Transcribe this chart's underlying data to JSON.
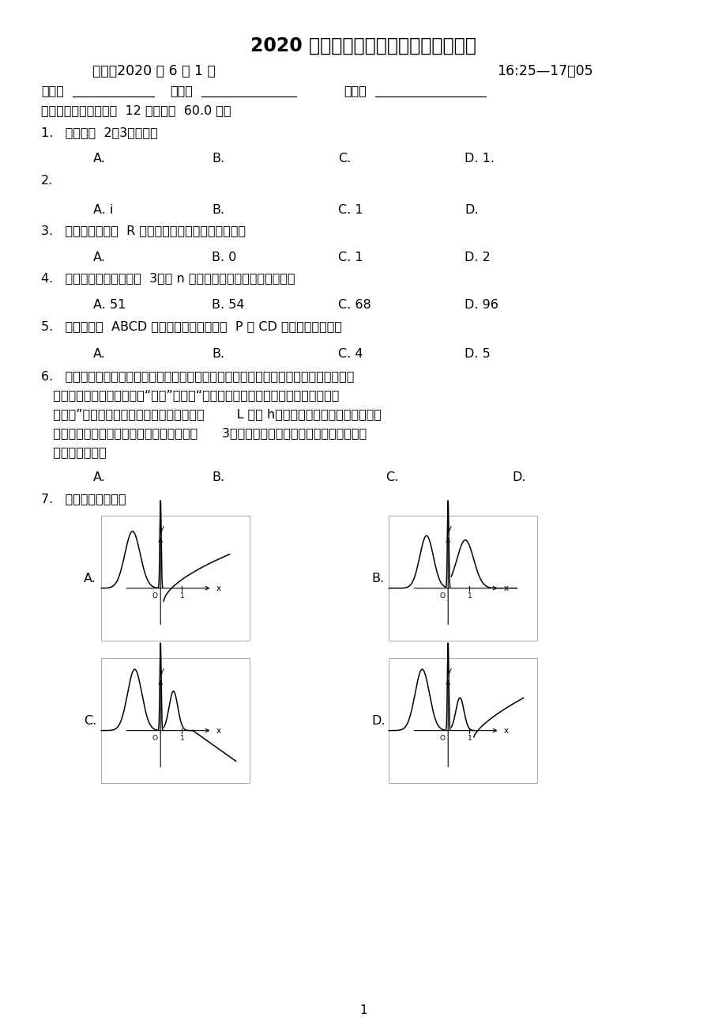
{
  "bg_color": "#ffffff",
  "title": "2020 居高三数学（理）第十次周测试卷",
  "subtitle_left": "时间：2020 年 6 月 1 日",
  "subtitle_right": "16:25—17：05",
  "name_label": "姓名：",
  "class_label": "班级：",
  "score_label": "得分：",
  "section1": "一、选择题（本大题共  12 小题，共  60.0 分）",
  "q1": "1.   已知集合  2，3，，，则",
  "q1_options": [
    "A.",
    "B.",
    "C.",
    "D. 1."
  ],
  "q2": "2.",
  "q2_options": [
    "A. i",
    "B.",
    "C. 1",
    "D."
  ],
  "q3": "3.   若函数是定义在  R 上的奇函数，，当时，，则实数",
  "q3_options": [
    "A.",
    "B. 0",
    "C. 1",
    "D. 2"
  ],
  "q4": "4.   已知等差数列的公差为  3，前 n 项和为，且，，成等比数列，则",
  "q4_options": [
    "A. 51",
    "B. 54",
    "C. 68",
    "D. 96"
  ],
  "q5": "5.   在直角梯形  ABCD 中，已知，，，，，若  P 为 CD 的中点，则的値为",
  "q5_options": [
    "A.",
    "B.",
    "C. 4",
    "D. 5"
  ],
  "q6_lines": [
    "6.   算数书竹简与上世纪八十年代在湖北省江陵县张家山出土，这是我国现存最早的有系统",
    "   的数学典籍．其中记载有求“囷盖”的术：“置如其周，令相承也．又以高乘之，三十",
    "   六成一”该术相当于给出了由圆锥的底面周长        L 与高 h，计算器体积的近似公式．它实",
    "   際上是将圆锥体积公式中的圆周率近似取为      3，那么近似公式相当于圆锥体积公式中的",
    "   圆周率近似取为"
  ],
  "q6_options": [
    "A.",
    "B.",
    "C.",
    "D."
  ],
  "q7": "7.   函数的图象大致是",
  "page_num": "1"
}
